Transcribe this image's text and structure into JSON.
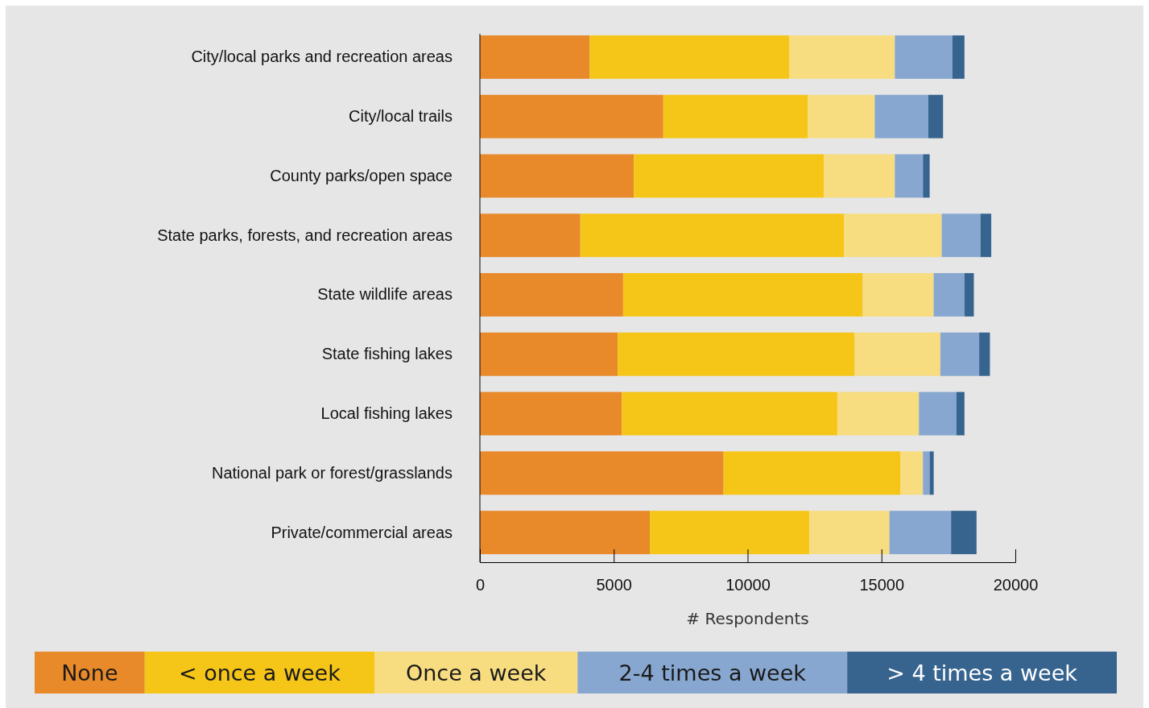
{
  "chart_data": {
    "type": "bar",
    "orientation": "horizontal",
    "stacked": true,
    "xlabel": "# Respondents",
    "legend": "bottom",
    "categories": [
      "City/local parks and recreation areas",
      "City/local trails",
      "County parks/open space",
      "State parks, forests, and recreation areas",
      "State wildlife areas",
      "State fishing lakes",
      "Local fishing lakes",
      "National park or forest/grasslands",
      "Private/commercial areas"
    ],
    "xlim": [
      0,
      20000
    ],
    "xticks": [
      0,
      5000,
      10000,
      15000,
      20000
    ],
    "series": [
      {
        "name": "None",
        "color": "#e8892a",
        "values": [
          4100,
          6850,
          5750,
          3750,
          5350,
          5150,
          5300,
          9100,
          6350
        ]
      },
      {
        "name": "< once a week",
        "color": "#f5c518",
        "values": [
          7450,
          5400,
          7100,
          9850,
          8950,
          8850,
          8050,
          6600,
          5950
        ]
      },
      {
        "name": "Once a week",
        "color": "#f7dc80",
        "values": [
          3950,
          2500,
          2650,
          3650,
          2650,
          3200,
          3050,
          850,
          3000
        ]
      },
      {
        "name": "2-4 times a week",
        "color": "#87a7d0",
        "values": [
          2150,
          2000,
          1050,
          1450,
          1150,
          1450,
          1400,
          250,
          2300
        ]
      },
      {
        "name": "> 4 times a week",
        "color": "#36648f",
        "values": [
          450,
          550,
          250,
          400,
          350,
          400,
          300,
          150,
          950
        ]
      }
    ]
  }
}
